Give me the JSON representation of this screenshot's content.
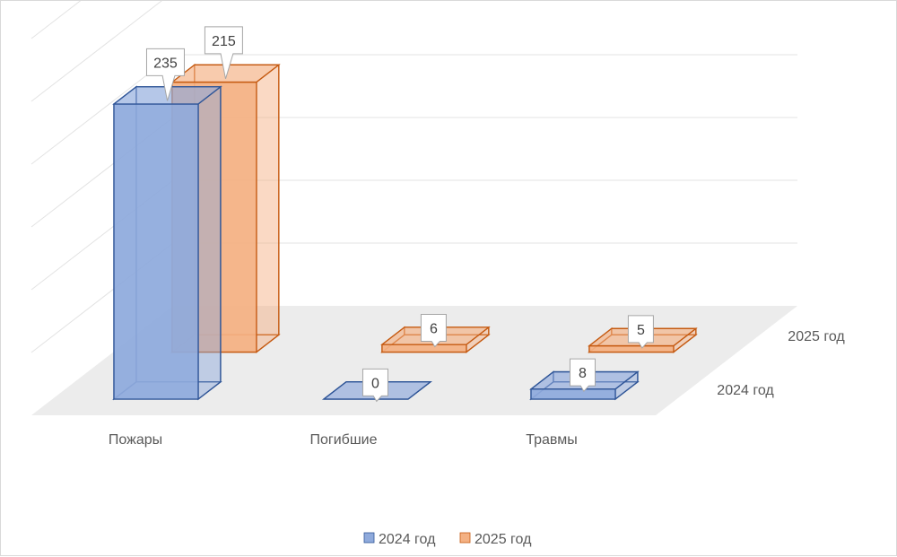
{
  "chart_data": {
    "type": "bar",
    "categories": [
      "Пожары",
      "Погибшие",
      "Травмы"
    ],
    "series": [
      {
        "name": "2024 год",
        "values": [
          235,
          0,
          8
        ]
      },
      {
        "name": "2025 год",
        "values": [
          215,
          6,
          5
        ]
      }
    ],
    "ylim": [
      0,
      300
    ],
    "grid": true,
    "legend": "bottom",
    "colors": {
      "2024 год": {
        "fill": "#8faadc",
        "stroke": "#2f5597"
      },
      "2025 год": {
        "fill": "#f4b183",
        "stroke": "#c55a11"
      }
    }
  }
}
